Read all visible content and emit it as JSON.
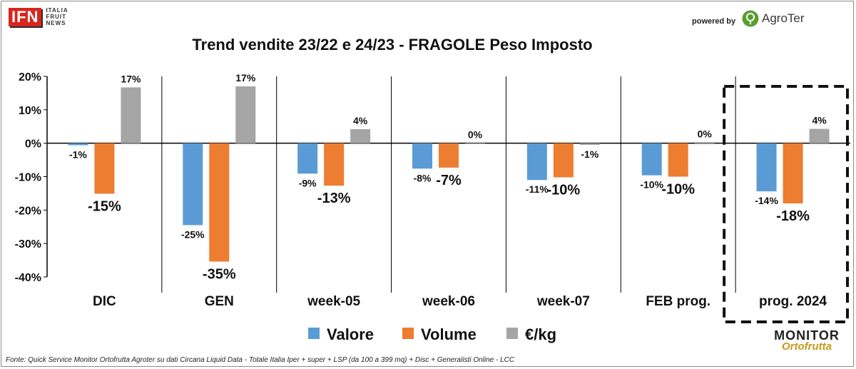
{
  "header": {
    "ifn_logo": "IFN",
    "ifn_lines": [
      "ITALIA",
      "FRUIT",
      "NEWS"
    ],
    "powered_by": "powered by",
    "agroter_name": "AgroTer",
    "agroter_icon": "tree-icon"
  },
  "footer": {
    "source": "Fonte: Quick Service Monitor Ortofrutta Agroter su dati Circana Liquid Data - Totale Italia Iper + super + LSP (da 100 a 399 mq) + Disc + Generalisti Online - LCC",
    "monitor_top": "MONITOR",
    "monitor_bottom": "Ortofrutta"
  },
  "chart_data": {
    "type": "bar",
    "title": "Trend vendite 23/22 e 24/23 - FRAGOLE Peso Imposto",
    "categories": [
      "DIC",
      "GEN",
      "week-05",
      "week-06",
      "week-07",
      "FEB prog.",
      "prog. 2024"
    ],
    "series": [
      {
        "name": "Valore",
        "color": "#5b9bd5",
        "values": [
          -0.6,
          -24.5,
          -9.1,
          -7.6,
          -11.0,
          -9.6,
          -14.4
        ],
        "labels": [
          "-1%",
          "-25%",
          "-9%",
          "-8%",
          "-11%",
          "-10%",
          "-14%"
        ]
      },
      {
        "name": "Volume",
        "color": "#ed7d31",
        "values": [
          -15.1,
          -35.4,
          -12.7,
          -7.3,
          -10.2,
          -10.0,
          -18.0
        ],
        "labels": [
          "-15%",
          "-35%",
          "-13%",
          "-7%",
          "-10%",
          "-10%",
          "-18%"
        ]
      },
      {
        "name": "€/kg",
        "color": "#a5a5a5",
        "values": [
          16.7,
          17.0,
          4.2,
          0.0,
          -0.5,
          0.3,
          4.3
        ],
        "labels": [
          "17%",
          "17%",
          "4%",
          "0%",
          "-1%",
          "0%",
          "4%"
        ]
      }
    ],
    "ylim": [
      -40,
      20
    ],
    "yticks": [
      20,
      10,
      0,
      -10,
      -20,
      -30,
      -40
    ],
    "ytick_labels": [
      "20%",
      "10%",
      "0%",
      "-10%",
      "-20%",
      "-30%",
      "-40%"
    ],
    "highlight_category": "prog. 2024",
    "grid": false,
    "legend_position": "bottom"
  }
}
